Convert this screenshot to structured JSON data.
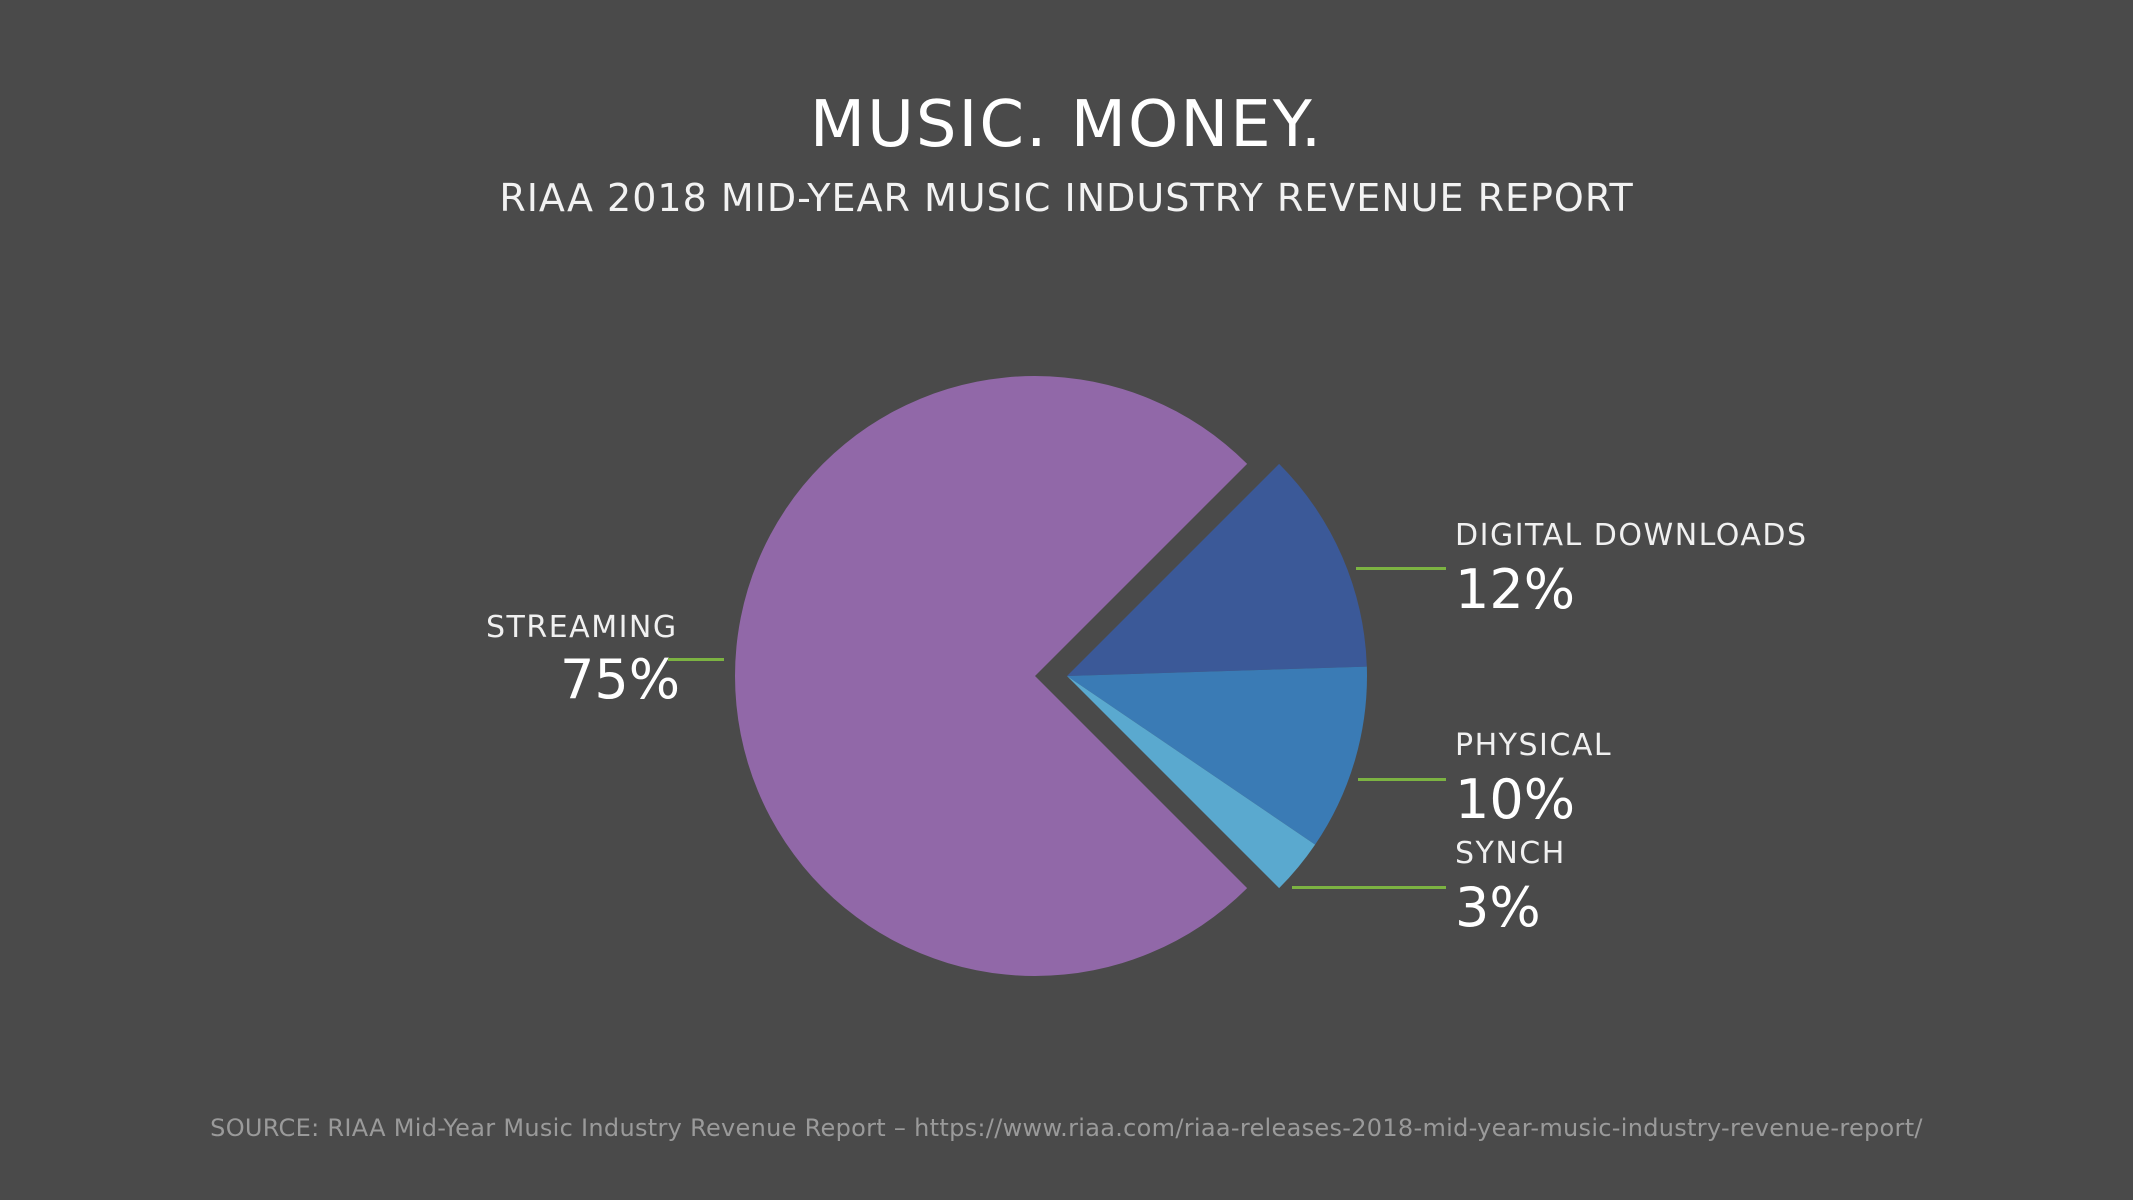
{
  "header": {
    "title": "MUSIC. MONEY.",
    "subtitle": "RIAA 2018 MID-YEAR MUSIC INDUSTRY REVENUE REPORT"
  },
  "footer": {
    "source": "SOURCE: RIAA Mid-Year Music Industry Revenue Report – https://www.riaa.com/riaa-releases-2018-mid-year-music-industry-revenue-report/"
  },
  "colors": {
    "background": "#4a4a4a",
    "leader_line": "#7cb342"
  },
  "chart_data": {
    "type": "pie",
    "title": "MUSIC. MONEY.",
    "subtitle": "RIAA 2018 MID-YEAR MUSIC INDUSTRY REVENUE REPORT",
    "legend": "none",
    "slices": [
      {
        "label": "STREAMING",
        "value": 75,
        "display": "75%",
        "color": "#9168a8",
        "exploded": false
      },
      {
        "label": "DIGITAL DOWNLOADS",
        "value": 12,
        "display": "12%",
        "color": "#3b5998",
        "exploded": true
      },
      {
        "label": "PHYSICAL",
        "value": 10,
        "display": "10%",
        "color": "#3a7bb5",
        "exploded": true
      },
      {
        "label": "SYNCH",
        "value": 3,
        "display": "3%",
        "color": "#5aa9cf",
        "exploded": true
      }
    ]
  }
}
